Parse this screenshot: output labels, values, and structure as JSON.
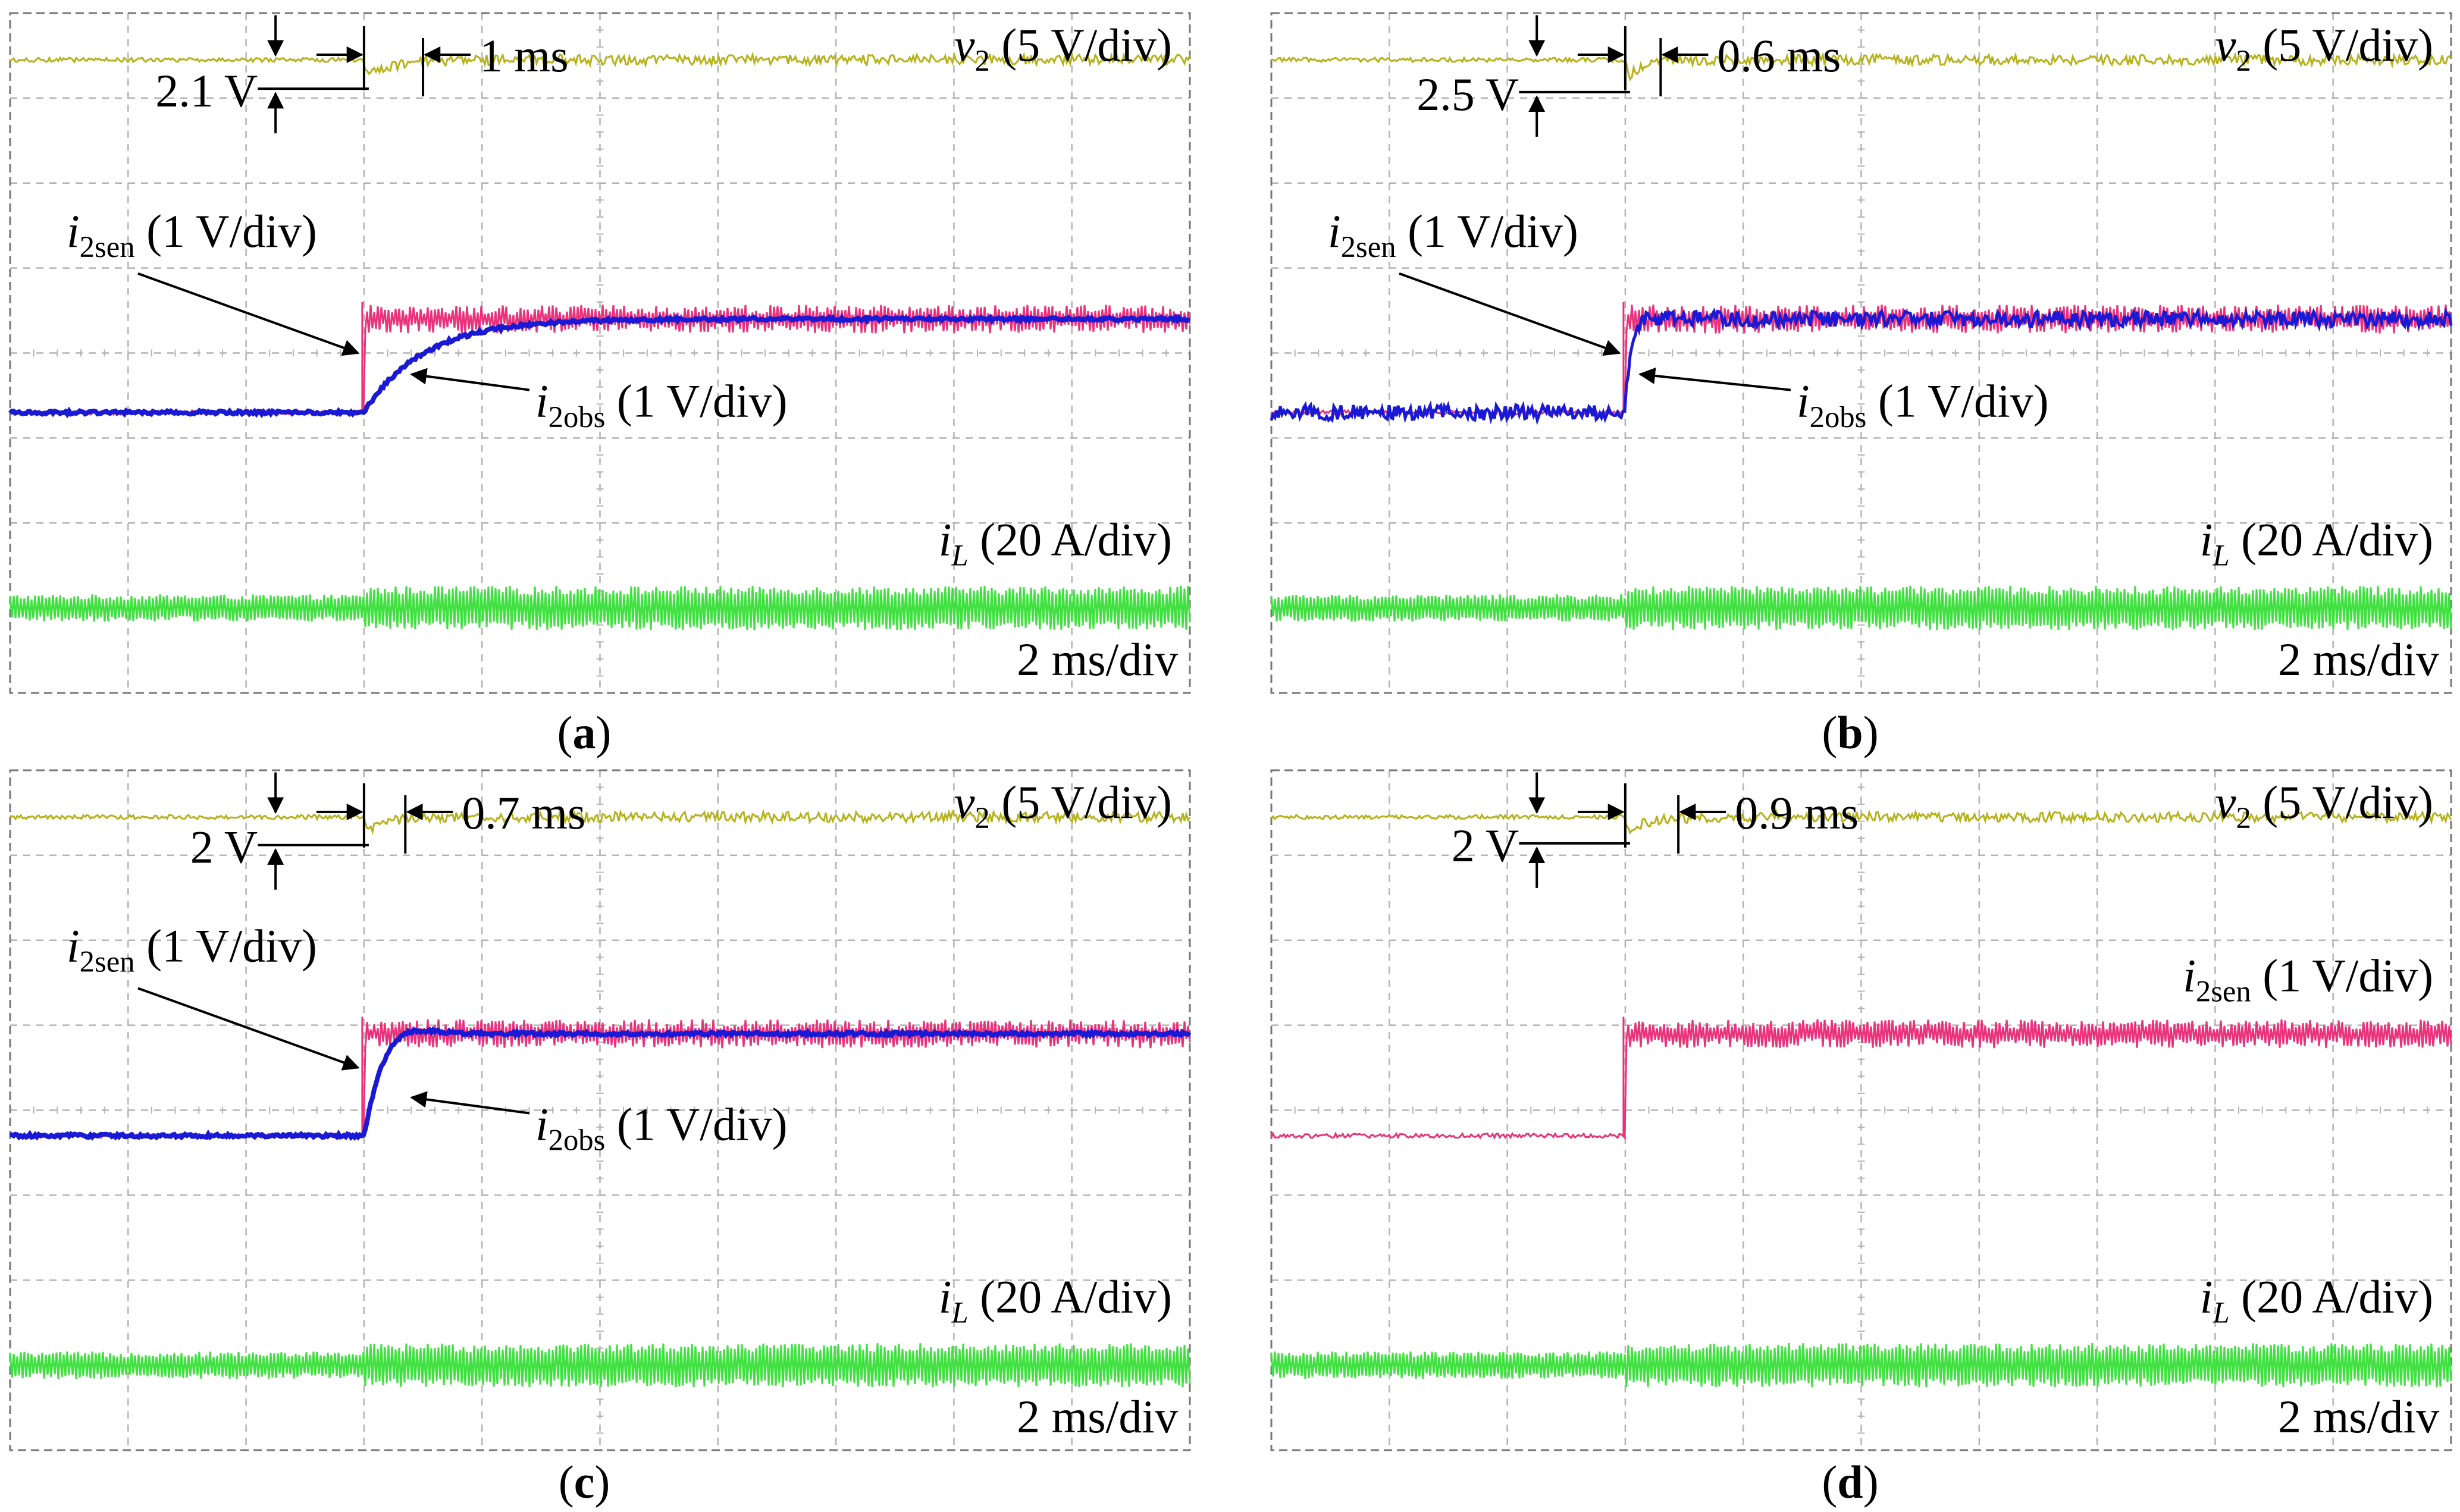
{
  "figure": {
    "panels": [
      {
        "id": "a",
        "caption": "(a)"
      },
      {
        "id": "b",
        "caption": "(b)"
      },
      {
        "id": "c",
        "caption": "(c)"
      },
      {
        "id": "d",
        "caption": "(d)"
      }
    ]
  },
  "colors": {
    "v2": "#b5b21b",
    "i2sen": "#e8337a",
    "i2obs": "#1a1ad6",
    "iL": "#3fe03f",
    "grid": "#b4b4b4",
    "frame": "#777777"
  },
  "chart_data": [
    {
      "panel": "a",
      "type": "line",
      "x_unit": "ms",
      "time_per_div": "2 ms/div",
      "grid": true,
      "divisions": [
        10,
        8
      ],
      "step_time_div": 3,
      "voltage_dip": "2.1 V",
      "recovery_time": "1 ms",
      "has_observer_trace": true,
      "series": [
        {
          "name": "v2",
          "label": "v2 (5 V/div)",
          "scale": "5 V/div",
          "level_div_from_top": 0.55,
          "dip_div": 0.2,
          "recovery_div": 0.5
        },
        {
          "name": "i2sen",
          "label": "i2sen (1 V/div)",
          "scale": "1 V/div",
          "before_div": 4.7,
          "after_div": 3.6,
          "step": "instant"
        },
        {
          "name": "i2obs",
          "label": "i2obs (1 V/div)",
          "scale": "1 V/div",
          "before_div": 4.7,
          "after_div": 3.6,
          "settle_div": 1.5,
          "noise": "smooth"
        },
        {
          "name": "iL",
          "label": "iL (20 A/div)",
          "scale": "20 A/div",
          "level_div": 7.0,
          "ripple_before": 0.16,
          "ripple_after": 0.26
        }
      ]
    },
    {
      "panel": "b",
      "type": "line",
      "x_unit": "ms",
      "time_per_div": "2 ms/div",
      "grid": true,
      "divisions": [
        10,
        8
      ],
      "step_time_div": 3,
      "voltage_dip": "2.5 V",
      "recovery_time": "0.6 ms",
      "has_observer_trace": true,
      "series": [
        {
          "name": "v2",
          "label": "v2 (5 V/div)",
          "scale": "5 V/div",
          "level_div_from_top": 0.55,
          "dip_div": 0.24,
          "recovery_div": 0.3
        },
        {
          "name": "i2sen",
          "label": "i2sen (1 V/div)",
          "scale": "1 V/div",
          "before_div": 4.7,
          "after_div": 3.6,
          "step": "instant"
        },
        {
          "name": "i2obs",
          "label": "i2obs (1 V/div)",
          "scale": "1 V/div",
          "before_div": 4.7,
          "after_div": 3.6,
          "settle_div": 0.12,
          "noise": "noisy"
        },
        {
          "name": "iL",
          "label": "iL (20 A/div)",
          "scale": "20 A/div",
          "level_div": 7.0,
          "ripple_before": 0.16,
          "ripple_after": 0.26
        }
      ]
    },
    {
      "panel": "c",
      "type": "line",
      "x_unit": "ms",
      "time_per_div": "2 ms/div",
      "grid": true,
      "divisions": [
        10,
        8
      ],
      "step_time_div": 3,
      "voltage_dip": "2 V",
      "recovery_time": "0.7 ms",
      "has_observer_trace": true,
      "series": [
        {
          "name": "v2",
          "label": "v2 (5 V/div)",
          "scale": "5 V/div",
          "level_div_from_top": 0.55,
          "dip_div": 0.19,
          "recovery_div": 0.35
        },
        {
          "name": "i2sen",
          "label": "i2sen (1 V/div)",
          "scale": "1 V/div",
          "before_div": 4.3,
          "after_div": 3.1,
          "step": "instant"
        },
        {
          "name": "i2obs",
          "label": "i2obs (1 V/div)",
          "scale": "1 V/div",
          "before_div": 4.3,
          "after_div": 3.1,
          "settle_div": 0.5,
          "noise": "overshoot"
        },
        {
          "name": "iL",
          "label": "iL (20 A/div)",
          "scale": "20 A/div",
          "level_div": 7.0,
          "ripple_before": 0.16,
          "ripple_after": 0.26
        }
      ]
    },
    {
      "panel": "d",
      "type": "line",
      "x_unit": "ms",
      "time_per_div": "2 ms/div",
      "grid": true,
      "divisions": [
        10,
        8
      ],
      "step_time_div": 3,
      "voltage_dip": "2 V",
      "recovery_time": "0.9 ms",
      "has_observer_trace": false,
      "series": [
        {
          "name": "v2",
          "label": "v2 (5 V/div)",
          "scale": "5 V/div",
          "level_div_from_top": 0.55,
          "dip_div": 0.17,
          "recovery_div": 0.45
        },
        {
          "name": "i2sen",
          "label": "i2sen (1 V/div)",
          "scale": "1 V/div",
          "before_div": 4.3,
          "after_div": 3.1,
          "step": "instant"
        },
        {
          "name": "iL",
          "label": "iL (20 A/div)",
          "scale": "20 A/div",
          "level_div": 7.0,
          "ripple_before": 0.16,
          "ripple_after": 0.26
        }
      ]
    }
  ]
}
